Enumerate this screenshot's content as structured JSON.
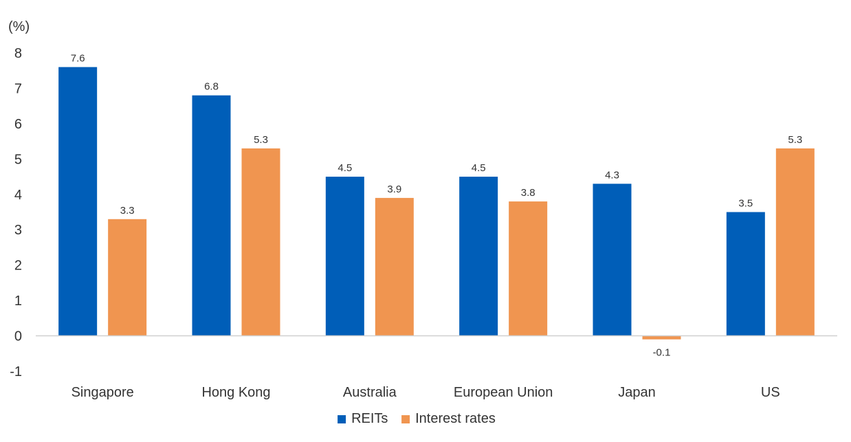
{
  "chart_data": {
    "type": "bar",
    "ylabel": "(%)",
    "ylim": [
      -1,
      8
    ],
    "yticks": [
      -1,
      0,
      1,
      2,
      3,
      4,
      5,
      6,
      7,
      8
    ],
    "categories": [
      "Singapore",
      "Hong Kong",
      "Australia",
      "European Union",
      "Japan",
      "US"
    ],
    "series": [
      {
        "name": "REITs",
        "color": "#005EB8",
        "values": [
          7.6,
          6.8,
          4.5,
          4.5,
          4.3,
          3.5
        ]
      },
      {
        "name": "Interest rates",
        "color": "#F09550",
        "values": [
          3.3,
          5.3,
          3.9,
          3.8,
          -0.1,
          5.3
        ]
      }
    ],
    "legend_position": "bottom",
    "grid": false
  }
}
